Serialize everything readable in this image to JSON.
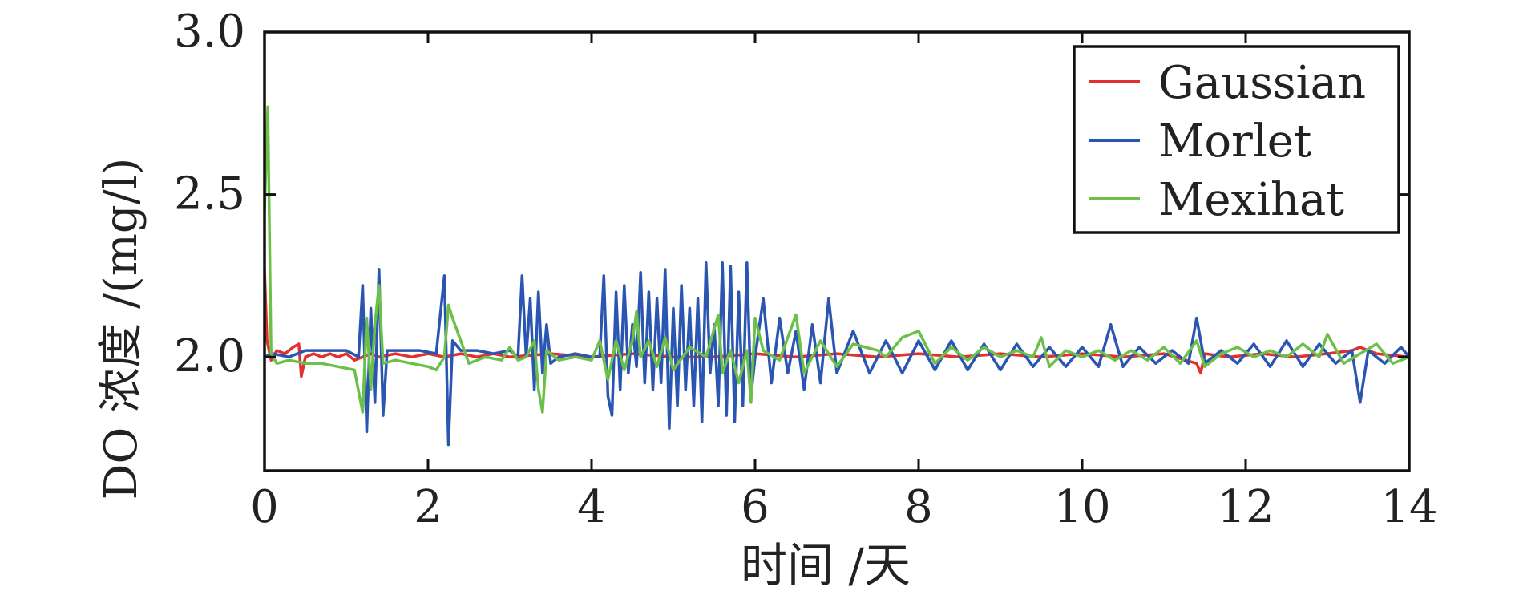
{
  "chart_data": {
    "type": "line",
    "xlabel": "时间 /天",
    "ylabel": "DO 浓度 /(mg/l)",
    "xlim": [
      0,
      14
    ],
    "ylim": [
      1.65,
      3.0
    ],
    "x_ticks": [
      0,
      2,
      4,
      6,
      8,
      10,
      12,
      14
    ],
    "y_ticks": [
      2.0,
      2.5,
      3.0
    ],
    "y_tick_labels": [
      "2.0",
      "2.5",
      "3.0"
    ],
    "grid": false,
    "legend": {
      "position": "top-right"
    },
    "series": [
      {
        "name": "Gaussian",
        "color": "#e03030",
        "points": [
          [
            0,
            2.27
          ],
          [
            0.03,
            2.05
          ],
          [
            0.08,
            1.99
          ],
          [
            0.15,
            2.02
          ],
          [
            0.25,
            2.01
          ],
          [
            0.35,
            2.03
          ],
          [
            0.42,
            2.04
          ],
          [
            0.45,
            1.94
          ],
          [
            0.5,
            2.0
          ],
          [
            0.6,
            2.01
          ],
          [
            0.7,
            2.0
          ],
          [
            0.8,
            2.01
          ],
          [
            0.9,
            2.0
          ],
          [
            1.0,
            2.01
          ],
          [
            1.1,
            1.99
          ],
          [
            1.2,
            2.0
          ],
          [
            1.3,
            2.01
          ],
          [
            1.4,
            2.0
          ],
          [
            1.6,
            2.01
          ],
          [
            1.8,
            2.0
          ],
          [
            2.0,
            2.01
          ],
          [
            2.2,
            2.0
          ],
          [
            2.4,
            2.01
          ],
          [
            2.6,
            2.0
          ],
          [
            2.8,
            2.01
          ],
          [
            3.0,
            2.0
          ],
          [
            3.5,
            2.01
          ],
          [
            4.0,
            2.0
          ],
          [
            4.5,
            2.01
          ],
          [
            5.0,
            2.0
          ],
          [
            5.5,
            2.0
          ],
          [
            6.0,
            2.01
          ],
          [
            6.5,
            2.0
          ],
          [
            7.0,
            2.01
          ],
          [
            7.5,
            2.0
          ],
          [
            8.0,
            2.01
          ],
          [
            8.5,
            2.0
          ],
          [
            9.0,
            2.01
          ],
          [
            9.5,
            2.0
          ],
          [
            10.0,
            2.01
          ],
          [
            10.5,
            2.0
          ],
          [
            11.0,
            2.01
          ],
          [
            11.4,
            1.98
          ],
          [
            11.45,
            1.95
          ],
          [
            11.5,
            2.01
          ],
          [
            11.8,
            2.0
          ],
          [
            12.2,
            2.01
          ],
          [
            12.6,
            2.0
          ],
          [
            13.0,
            2.01
          ],
          [
            13.3,
            2.02
          ],
          [
            13.4,
            2.03
          ],
          [
            13.6,
            2.01
          ],
          [
            14.0,
            2.0
          ]
        ]
      },
      {
        "name": "Morlet",
        "color": "#2a55b0",
        "points": [
          [
            0,
            2.0
          ],
          [
            0.1,
            2.01
          ],
          [
            0.3,
            2.0
          ],
          [
            0.5,
            2.02
          ],
          [
            0.8,
            2.02
          ],
          [
            1.0,
            2.02
          ],
          [
            1.15,
            2.0
          ],
          [
            1.2,
            2.22
          ],
          [
            1.25,
            1.77
          ],
          [
            1.3,
            2.15
          ],
          [
            1.35,
            1.86
          ],
          [
            1.4,
            2.27
          ],
          [
            1.45,
            1.82
          ],
          [
            1.5,
            2.02
          ],
          [
            1.7,
            2.02
          ],
          [
            1.9,
            2.02
          ],
          [
            2.1,
            2.01
          ],
          [
            2.2,
            2.25
          ],
          [
            2.25,
            1.73
          ],
          [
            2.3,
            2.05
          ],
          [
            2.4,
            2.02
          ],
          [
            2.6,
            2.02
          ],
          [
            2.8,
            2.01
          ],
          [
            3.0,
            2.02
          ],
          [
            3.1,
            2.0
          ],
          [
            3.15,
            2.25
          ],
          [
            3.2,
            2.0
          ],
          [
            3.25,
            2.18
          ],
          [
            3.3,
            1.9
          ],
          [
            3.35,
            2.2
          ],
          [
            3.4,
            1.95
          ],
          [
            3.45,
            2.1
          ],
          [
            3.5,
            1.98
          ],
          [
            3.6,
            2.0
          ],
          [
            3.8,
            2.01
          ],
          [
            4.0,
            2.0
          ],
          [
            4.1,
            2.0
          ],
          [
            4.15,
            2.25
          ],
          [
            4.2,
            1.88
          ],
          [
            4.25,
            1.82
          ],
          [
            4.3,
            2.2
          ],
          [
            4.35,
            1.9
          ],
          [
            4.4,
            2.22
          ],
          [
            4.45,
            1.95
          ],
          [
            4.5,
            2.1
          ],
          [
            4.55,
            1.97
          ],
          [
            4.6,
            2.26
          ],
          [
            4.65,
            1.92
          ],
          [
            4.7,
            2.2
          ],
          [
            4.75,
            1.9
          ],
          [
            4.8,
            2.18
          ],
          [
            4.85,
            1.92
          ],
          [
            4.9,
            2.27
          ],
          [
            4.95,
            1.78
          ],
          [
            5.0,
            2.15
          ],
          [
            5.05,
            1.85
          ],
          [
            5.1,
            2.22
          ],
          [
            5.15,
            1.9
          ],
          [
            5.2,
            2.15
          ],
          [
            5.25,
            1.85
          ],
          [
            5.3,
            2.18
          ],
          [
            5.35,
            1.8
          ],
          [
            5.4,
            2.29
          ],
          [
            5.45,
            1.95
          ],
          [
            5.5,
            2.1
          ],
          [
            5.55,
            1.85
          ],
          [
            5.6,
            2.29
          ],
          [
            5.65,
            1.82
          ],
          [
            5.7,
            2.28
          ],
          [
            5.75,
            1.8
          ],
          [
            5.8,
            2.2
          ],
          [
            5.85,
            1.85
          ],
          [
            5.9,
            2.29
          ],
          [
            5.95,
            1.88
          ],
          [
            6.0,
            2.0
          ],
          [
            6.1,
            2.18
          ],
          [
            6.2,
            1.92
          ],
          [
            6.3,
            2.12
          ],
          [
            6.4,
            1.95
          ],
          [
            6.5,
            2.08
          ],
          [
            6.6,
            1.9
          ],
          [
            6.7,
            2.1
          ],
          [
            6.8,
            1.92
          ],
          [
            6.9,
            2.18
          ],
          [
            7.0,
            1.95
          ],
          [
            7.2,
            2.08
          ],
          [
            7.4,
            1.95
          ],
          [
            7.6,
            2.05
          ],
          [
            7.8,
            1.95
          ],
          [
            8.0,
            2.05
          ],
          [
            8.2,
            1.96
          ],
          [
            8.4,
            2.05
          ],
          [
            8.6,
            1.96
          ],
          [
            8.8,
            2.04
          ],
          [
            9.0,
            1.96
          ],
          [
            9.2,
            2.04
          ],
          [
            9.4,
            1.97
          ],
          [
            9.6,
            2.03
          ],
          [
            9.8,
            1.97
          ],
          [
            10.0,
            2.03
          ],
          [
            10.2,
            1.97
          ],
          [
            10.35,
            2.1
          ],
          [
            10.5,
            1.97
          ],
          [
            10.7,
            2.03
          ],
          [
            10.9,
            1.98
          ],
          [
            11.1,
            2.02
          ],
          [
            11.3,
            1.98
          ],
          [
            11.4,
            2.12
          ],
          [
            11.5,
            1.98
          ],
          [
            11.7,
            2.02
          ],
          [
            11.9,
            1.98
          ],
          [
            12.1,
            2.04
          ],
          [
            12.3,
            1.97
          ],
          [
            12.5,
            2.05
          ],
          [
            12.7,
            1.97
          ],
          [
            12.9,
            2.04
          ],
          [
            13.1,
            1.98
          ],
          [
            13.3,
            2.02
          ],
          [
            13.4,
            1.86
          ],
          [
            13.5,
            2.02
          ],
          [
            13.7,
            1.98
          ],
          [
            13.9,
            2.03
          ],
          [
            14.0,
            2.0
          ]
        ]
      },
      {
        "name": "Mexihat",
        "color": "#6cc04a",
        "points": [
          [
            0,
            2.45
          ],
          [
            0.04,
            2.77
          ],
          [
            0.08,
            2.01
          ],
          [
            0.15,
            1.98
          ],
          [
            0.3,
            1.99
          ],
          [
            0.5,
            1.98
          ],
          [
            0.7,
            1.98
          ],
          [
            0.9,
            1.97
          ],
          [
            1.1,
            1.96
          ],
          [
            1.2,
            1.83
          ],
          [
            1.25,
            2.12
          ],
          [
            1.3,
            1.9
          ],
          [
            1.35,
            2.1
          ],
          [
            1.4,
            2.22
          ],
          [
            1.45,
            1.98
          ],
          [
            1.6,
            1.99
          ],
          [
            1.8,
            1.98
          ],
          [
            2.0,
            1.97
          ],
          [
            2.1,
            1.96
          ],
          [
            2.2,
            2.0
          ],
          [
            2.25,
            2.16
          ],
          [
            2.3,
            2.12
          ],
          [
            2.4,
            2.05
          ],
          [
            2.5,
            1.98
          ],
          [
            2.7,
            2.0
          ],
          [
            2.9,
            1.99
          ],
          [
            3.0,
            2.03
          ],
          [
            3.1,
            1.99
          ],
          [
            3.2,
            2.0
          ],
          [
            3.3,
            2.05
          ],
          [
            3.35,
            1.9
          ],
          [
            3.4,
            1.83
          ],
          [
            3.45,
            2.02
          ],
          [
            3.6,
            1.99
          ],
          [
            3.8,
            2.0
          ],
          [
            4.0,
            1.99
          ],
          [
            4.1,
            2.05
          ],
          [
            4.2,
            1.93
          ],
          [
            4.3,
            2.05
          ],
          [
            4.4,
            1.96
          ],
          [
            4.5,
            2.05
          ],
          [
            4.55,
            2.14
          ],
          [
            4.6,
            2.0
          ],
          [
            4.7,
            2.05
          ],
          [
            4.8,
            1.97
          ],
          [
            4.9,
            2.06
          ],
          [
            5.0,
            1.96
          ],
          [
            5.2,
            2.03
          ],
          [
            5.4,
            2.0
          ],
          [
            5.55,
            2.13
          ],
          [
            5.6,
            1.95
          ],
          [
            5.7,
            2.02
          ],
          [
            5.8,
            1.92
          ],
          [
            5.9,
            2.02
          ],
          [
            5.95,
            1.86
          ],
          [
            6.0,
            2.12
          ],
          [
            6.1,
            2.02
          ],
          [
            6.3,
            1.99
          ],
          [
            6.5,
            2.13
          ],
          [
            6.6,
            1.95
          ],
          [
            6.8,
            2.05
          ],
          [
            7.0,
            1.97
          ],
          [
            7.2,
            2.04
          ],
          [
            7.5,
            2.02
          ],
          [
            7.6,
            2.0
          ],
          [
            7.8,
            2.06
          ],
          [
            8.0,
            2.08
          ],
          [
            8.2,
            1.98
          ],
          [
            8.4,
            2.03
          ],
          [
            8.6,
            1.99
          ],
          [
            8.8,
            2.03
          ],
          [
            9.0,
            2.0
          ],
          [
            9.2,
            2.02
          ],
          [
            9.4,
            2.0
          ],
          [
            9.5,
            2.06
          ],
          [
            9.6,
            1.97
          ],
          [
            9.8,
            2.02
          ],
          [
            10.0,
            2.0
          ],
          [
            10.2,
            2.02
          ],
          [
            10.4,
            1.99
          ],
          [
            10.6,
            2.02
          ],
          [
            10.8,
            1.99
          ],
          [
            11.0,
            2.03
          ],
          [
            11.2,
            1.98
          ],
          [
            11.4,
            2.05
          ],
          [
            11.5,
            1.97
          ],
          [
            11.7,
            2.01
          ],
          [
            11.9,
            2.03
          ],
          [
            12.1,
            2.0
          ],
          [
            12.3,
            2.02
          ],
          [
            12.5,
            2.0
          ],
          [
            12.7,
            2.04
          ],
          [
            12.9,
            2.0
          ],
          [
            13.0,
            2.07
          ],
          [
            13.2,
            1.98
          ],
          [
            13.4,
            2.01
          ],
          [
            13.6,
            2.04
          ],
          [
            13.8,
            1.98
          ],
          [
            14.0,
            2.0
          ]
        ]
      }
    ]
  }
}
